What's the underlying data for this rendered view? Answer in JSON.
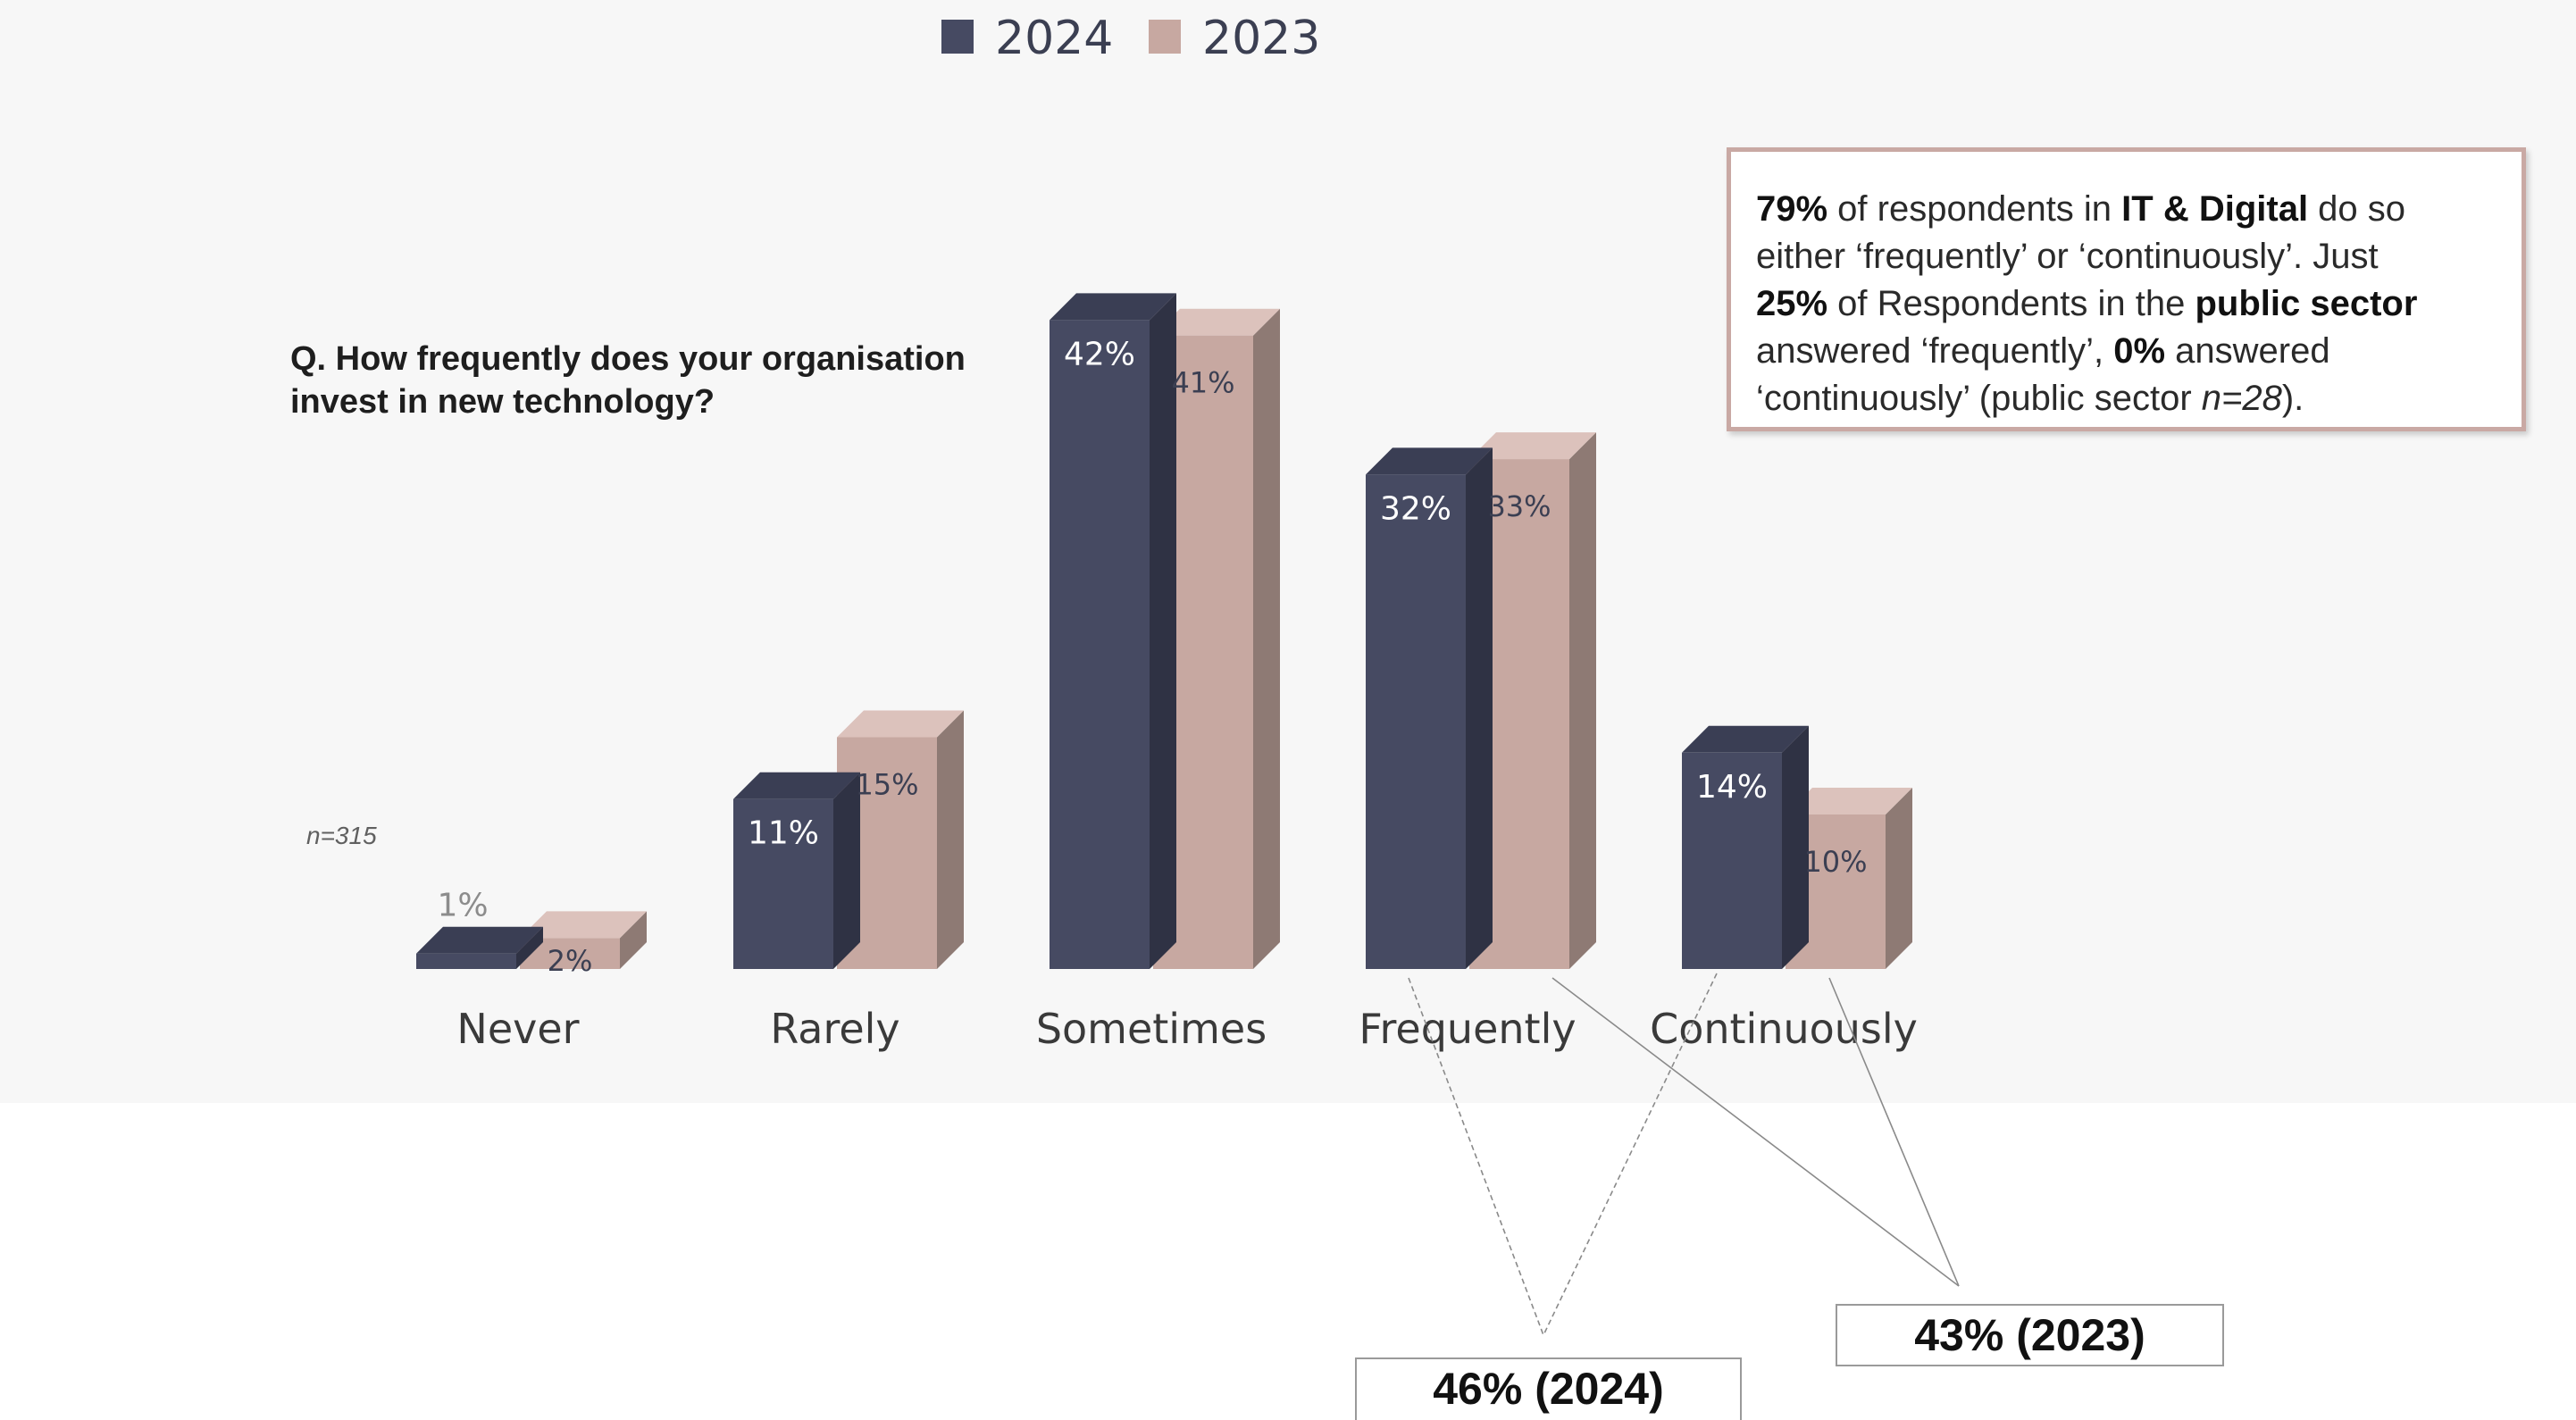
{
  "chart_data": {
    "type": "bar",
    "question": "Q. How frequently does your organisation invest in new technology?",
    "sample_note": "n=315",
    "categories": [
      "Never",
      "Rarely",
      "Sometimes",
      "Frequently",
      "Continuously"
    ],
    "series": [
      {
        "name": "2024",
        "color": "#464a62",
        "values": [
          1,
          11,
          42,
          32,
          14
        ]
      },
      {
        "name": "2023",
        "color": "#c7a8a1",
        "values": [
          2,
          15,
          41,
          33,
          10
        ]
      }
    ],
    "value_labels": {
      "2024": [
        "1%",
        "11%",
        "42%",
        "32%",
        "14%"
      ],
      "2023": [
        "2%",
        "15%",
        "41%",
        "33%",
        "10%"
      ]
    },
    "ylim": [
      0,
      45
    ],
    "legend": "top-center",
    "grid": false,
    "callout": {
      "line1_bold": "79%",
      "line1_a": " of respondents in ",
      "line1_bold2": "IT & Digital",
      "line1_b": " do so",
      "line2": "either ‘frequently’ or ‘continuously’. Just",
      "line3_bold": "25%",
      "line3_a": " of Respondents in the ",
      "line3_bold2": "public sector",
      "line4_a": "answered ‘frequently’, ",
      "line4_bold": "0%",
      "line4_b": " answered",
      "line5_a": "‘continuously’ (public sector ",
      "line5_italic": "n=28",
      "line5_b": ")."
    },
    "summaries": [
      {
        "label": "46% (2024)",
        "series": "2024",
        "categories": [
          "Frequently",
          "Continuously"
        ]
      },
      {
        "label": "43% (2023)",
        "series": "2023",
        "categories": [
          "Frequently",
          "Continuously"
        ]
      }
    ]
  }
}
